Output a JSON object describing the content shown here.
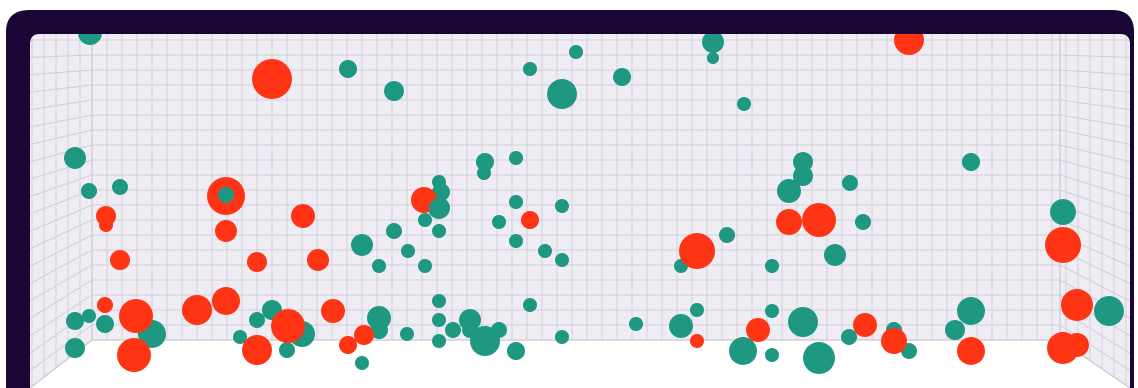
{
  "game": {
    "colors": {
      "frame": "#1a0536",
      "net_background": "#efedf3",
      "net_grid": "#d2ced9",
      "ground": "#ffffff",
      "ball_red": "#ff3414",
      "ball_teal": "#1f9882"
    },
    "icons": {
      "frame": "goal-frame",
      "balls": "circle"
    },
    "ball_count": {
      "red": 34,
      "teal": 101
    }
  }
}
